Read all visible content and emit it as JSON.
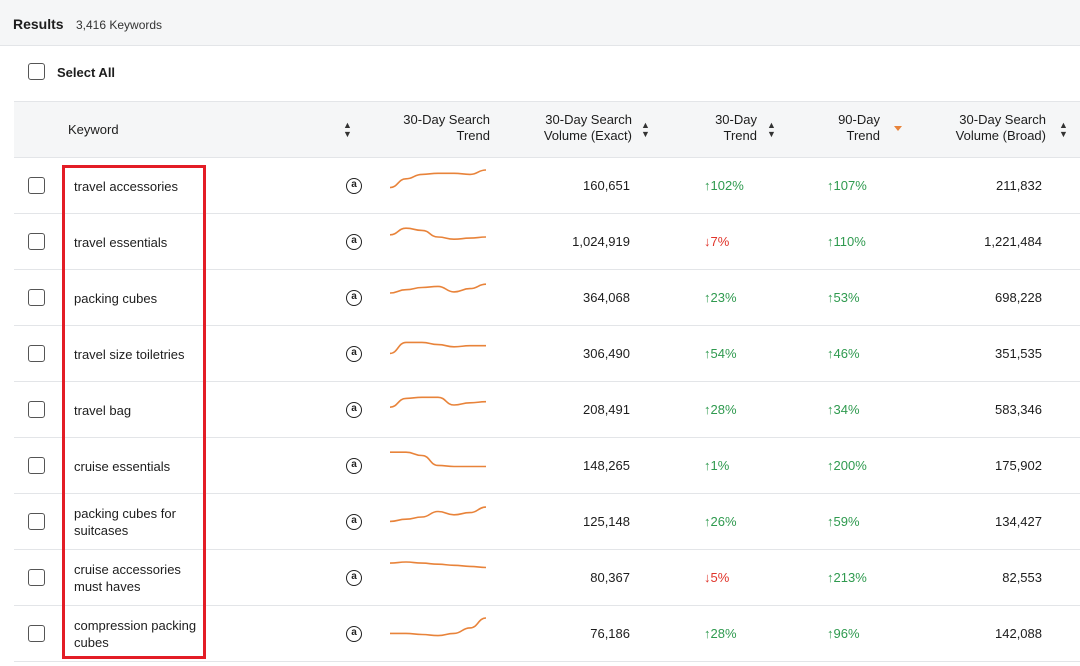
{
  "results": {
    "title": "Results",
    "count": "3,416 Keywords"
  },
  "select_all": {
    "label": "Select All"
  },
  "columns": {
    "keyword": "Keyword",
    "trend_line1": "30-Day Search",
    "trend_line2": "Trend",
    "vol_exact_line1": "30-Day Search",
    "vol_exact_line2": "Volume (Exact)",
    "trend30_line1": "30-Day",
    "trend30_line2": "Trend",
    "trend90_line1": "90-Day",
    "trend90_line2": "Trend",
    "vol_broad_line1": "30-Day Search",
    "vol_broad_line2": "Volume (Broad)"
  },
  "icons": {
    "amazon": "a",
    "arrow_up": "↑",
    "arrow_down": "↓"
  },
  "colors": {
    "positive": "#2f9a4f",
    "negative": "#e0342a",
    "sparkline": "#e8833a",
    "highlight": "#e31d26"
  },
  "rows": [
    {
      "keyword": "travel accessories",
      "spark": [
        0.2,
        0.6,
        0.8,
        0.85,
        0.85,
        0.8,
        1.0
      ],
      "vol_exact": "160,651",
      "t30": "↑102%",
      "t30_dir": "up",
      "t90": "↑107%",
      "t90_dir": "up",
      "vol_broad": "211,832"
    },
    {
      "keyword": "travel essentials",
      "spark": [
        0.6,
        0.9,
        0.8,
        0.5,
        0.4,
        0.45,
        0.5
      ],
      "vol_exact": "1,024,919",
      "t30": "↓7%",
      "t30_dir": "down",
      "t90": "↑110%",
      "t90_dir": "up",
      "vol_broad": "1,221,484"
    },
    {
      "keyword": "packing cubes",
      "spark": [
        0.5,
        0.65,
        0.75,
        0.8,
        0.55,
        0.7,
        0.9
      ],
      "vol_exact": "364,068",
      "t30": "↑23%",
      "t30_dir": "up",
      "t90": "↑53%",
      "t90_dir": "up",
      "vol_broad": "698,228"
    },
    {
      "keyword": "travel size toiletries",
      "spark": [
        0.3,
        0.8,
        0.8,
        0.7,
        0.6,
        0.65,
        0.65
      ],
      "vol_exact": "306,490",
      "t30": "↑54%",
      "t30_dir": "up",
      "t90": "↑46%",
      "t90_dir": "up",
      "vol_broad": "351,535"
    },
    {
      "keyword": "travel bag",
      "spark": [
        0.4,
        0.8,
        0.85,
        0.85,
        0.5,
        0.6,
        0.65
      ],
      "vol_exact": "208,491",
      "t30": "↑28%",
      "t30_dir": "up",
      "t90": "↑34%",
      "t90_dir": "up",
      "vol_broad": "583,346"
    },
    {
      "keyword": "cruise essentials",
      "spark": [
        0.9,
        0.9,
        0.75,
        0.3,
        0.25,
        0.25,
        0.25
      ],
      "vol_exact": "148,265",
      "t30": "↑1%",
      "t30_dir": "up",
      "t90": "↑200%",
      "t90_dir": "up",
      "vol_broad": "175,902"
    },
    {
      "keyword": "packing cubes for suitcases",
      "spark": [
        0.3,
        0.4,
        0.5,
        0.75,
        0.6,
        0.7,
        0.95
      ],
      "vol_exact": "125,148",
      "t30": "↑26%",
      "t30_dir": "up",
      "t90": "↑59%",
      "t90_dir": "up",
      "vol_broad": "134,427"
    },
    {
      "keyword": "cruise accessories must haves",
      "spark": [
        0.95,
        1.0,
        0.95,
        0.9,
        0.85,
        0.8,
        0.75
      ],
      "vol_exact": "80,367",
      "t30": "↓5%",
      "t30_dir": "down",
      "t90": "↑213%",
      "t90_dir": "up",
      "vol_broad": "82,553"
    },
    {
      "keyword": "compression packing cubes",
      "spark": [
        0.3,
        0.3,
        0.25,
        0.2,
        0.3,
        0.55,
        1.0
      ],
      "vol_exact": "76,186",
      "t30": "↑28%",
      "t30_dir": "up",
      "t90": "↑96%",
      "t90_dir": "up",
      "vol_broad": "142,088"
    }
  ]
}
